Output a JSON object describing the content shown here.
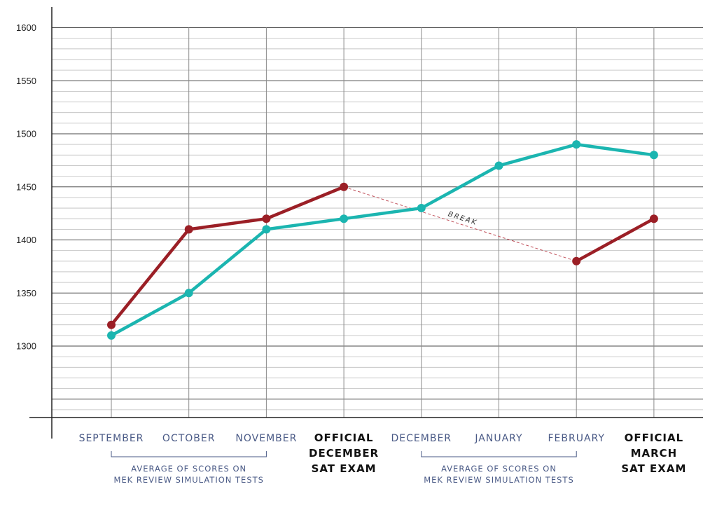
{
  "chart_data": {
    "type": "line",
    "categories": [
      {
        "lines": [
          "SEPTEMBER"
        ],
        "kind": "month"
      },
      {
        "lines": [
          "OCTOBER"
        ],
        "kind": "month"
      },
      {
        "lines": [
          "NOVEMBER"
        ],
        "kind": "month"
      },
      {
        "lines": [
          "OFFICIAL",
          "DECEMBER",
          "SAT EXAM"
        ],
        "kind": "exam"
      },
      {
        "lines": [
          "DECEMBER"
        ],
        "kind": "month"
      },
      {
        "lines": [
          "JANUARY"
        ],
        "kind": "month"
      },
      {
        "lines": [
          "FEBRUARY"
        ],
        "kind": "month"
      },
      {
        "lines": [
          "OFFICIAL",
          "MARCH",
          "SAT EXAM"
        ],
        "kind": "exam"
      }
    ],
    "y_ticks": [
      "1300",
      "1350",
      "1400",
      "1450",
      "1500",
      "1550",
      "1600"
    ],
    "ylim": [
      1234,
      1600
    ],
    "minor_step": 10,
    "series": [
      {
        "color": "#9b1f26",
        "values": [
          1320,
          1410,
          1420,
          1450,
          null,
          null,
          1380,
          1420
        ]
      },
      {
        "color": "#1bb5b0",
        "values": [
          1310,
          1350,
          1410,
          1420,
          1430,
          1470,
          1490,
          1480
        ]
      }
    ],
    "annotations": {
      "break": {
        "label": "BREAK",
        "from_index": 3,
        "to_index": 6,
        "series": 0,
        "color": "#c0505a"
      },
      "groups": [
        {
          "from_index": 0,
          "to_index": 2,
          "lines": [
            "AVERAGE OF SCORES ON",
            "MEK REVIEW SIMULATION TESTS"
          ]
        },
        {
          "from_index": 4,
          "to_index": 6,
          "lines": [
            "AVERAGE OF SCORES ON",
            "MEK REVIEW SIMULATION TESTS"
          ]
        }
      ]
    }
  }
}
